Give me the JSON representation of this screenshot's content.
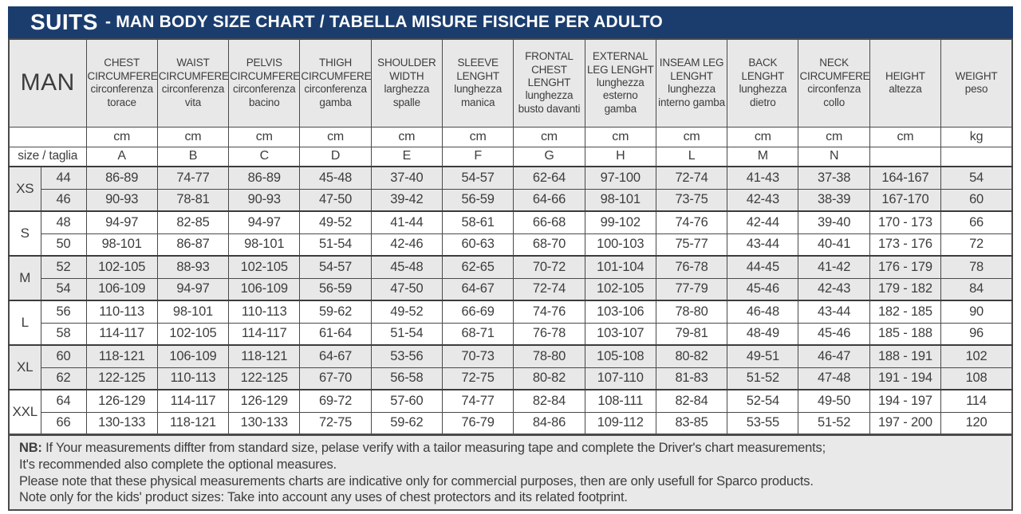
{
  "title": {
    "brand": "SUITS",
    "rest": "- MAN BODY SIZE CHART / TABELLA MISURE FISICHE PER ADULTO"
  },
  "colors": {
    "accent_navy": "#1b3d6e",
    "shade_gray": "#e8e8e8",
    "border_gray": "#4a4a4a"
  },
  "table": {
    "man_label": "MAN",
    "size_row_label": "size / taglia",
    "columns": [
      {
        "en": "CHEST CIRCUMFERENCE",
        "it": "circonferenza torace",
        "unit": "cm",
        "letter": "A"
      },
      {
        "en": "WAIST CIRCUMFERENCE",
        "it": "circonferenza vita",
        "unit": "cm",
        "letter": "B"
      },
      {
        "en": "PELVIS CIRCUMFERENCE",
        "it": "circonferenza bacino",
        "unit": "cm",
        "letter": "C"
      },
      {
        "en": "THIGH CIRCUMFERENCE",
        "it": "circonferenza gamba",
        "unit": "cm",
        "letter": "D"
      },
      {
        "en": "SHOULDER WIDTH",
        "it": "larghezza spalle",
        "unit": "cm",
        "letter": "E"
      },
      {
        "en": "SLEEVE LENGHT",
        "it": "lunghezza manica",
        "unit": "cm",
        "letter": "F"
      },
      {
        "en": "FRONTAL CHEST LENGHT",
        "it": "lunghezza busto davanti",
        "unit": "cm",
        "letter": "G"
      },
      {
        "en": "EXTERNAL LEG LENGHT",
        "it": "lunghezza esterno gamba",
        "unit": "cm",
        "letter": "H"
      },
      {
        "en": "INSEAM LEG LENGHT",
        "it": "lunghezza interno gamba",
        "unit": "cm",
        "letter": "L"
      },
      {
        "en": "BACK LENGHT",
        "it": "lunghezza dietro",
        "unit": "cm",
        "letter": "M"
      },
      {
        "en": "NECK CIRCUMFERENCE",
        "it": "circonfenza collo",
        "unit": "cm",
        "letter": "N"
      },
      {
        "en": "HEIGHT",
        "it": "altezza",
        "unit": "cm",
        "letter": ""
      },
      {
        "en": "WEIGHT",
        "it": "peso",
        "unit": "kg",
        "letter": ""
      }
    ],
    "groups": [
      {
        "label": "XS",
        "rows": [
          {
            "size": "44",
            "values": [
              "86-89",
              "74-77",
              "86-89",
              "45-48",
              "37-40",
              "54-57",
              "62-64",
              "97-100",
              "72-74",
              "41-43",
              "37-38",
              "164-167",
              "54"
            ]
          },
          {
            "size": "46",
            "values": [
              "90-93",
              "78-81",
              "90-93",
              "47-50",
              "39-42",
              "56-59",
              "64-66",
              "98-101",
              "73-75",
              "42-43",
              "38-39",
              "167-170",
              "60"
            ]
          }
        ]
      },
      {
        "label": "S",
        "rows": [
          {
            "size": "48",
            "values": [
              "94-97",
              "82-85",
              "94-97",
              "49-52",
              "41-44",
              "58-61",
              "66-68",
              "99-102",
              "74-76",
              "42-44",
              "39-40",
              "170 - 173",
              "66"
            ]
          },
          {
            "size": "50",
            "values": [
              "98-101",
              "86-87",
              "98-101",
              "51-54",
              "42-46",
              "60-63",
              "68-70",
              "100-103",
              "75-77",
              "43-44",
              "40-41",
              "173 - 176",
              "72"
            ]
          }
        ]
      },
      {
        "label": "M",
        "rows": [
          {
            "size": "52",
            "values": [
              "102-105",
              "88-93",
              "102-105",
              "54-57",
              "45-48",
              "62-65",
              "70-72",
              "101-104",
              "76-78",
              "44-45",
              "41-42",
              "176 - 179",
              "78"
            ]
          },
          {
            "size": "54",
            "values": [
              "106-109",
              "94-97",
              "106-109",
              "56-59",
              "47-50",
              "64-67",
              "72-74",
              "102-105",
              "77-79",
              "45-46",
              "42-43",
              "179 - 182",
              "84"
            ]
          }
        ]
      },
      {
        "label": "L",
        "rows": [
          {
            "size": "56",
            "values": [
              "110-113",
              "98-101",
              "110-113",
              "59-62",
              "49-52",
              "66-69",
              "74-76",
              "103-106",
              "78-80",
              "46-48",
              "43-44",
              "182 - 185",
              "90"
            ]
          },
          {
            "size": "58",
            "values": [
              "114-117",
              "102-105",
              "114-117",
              "61-64",
              "51-54",
              "68-71",
              "76-78",
              "103-107",
              "79-81",
              "48-49",
              "45-46",
              "185 - 188",
              "96"
            ]
          }
        ]
      },
      {
        "label": "XL",
        "rows": [
          {
            "size": "60",
            "values": [
              "118-121",
              "106-109",
              "118-121",
              "64-67",
              "53-56",
              "70-73",
              "78-80",
              "105-108",
              "80-82",
              "49-51",
              "46-47",
              "188 - 191",
              "102"
            ]
          },
          {
            "size": "62",
            "values": [
              "122-125",
              "110-113",
              "122-125",
              "67-70",
              "56-58",
              "72-75",
              "80-82",
              "107-110",
              "81-83",
              "51-52",
              "47-48",
              "191 - 194",
              "108"
            ]
          }
        ]
      },
      {
        "label": "XXL",
        "rows": [
          {
            "size": "64",
            "values": [
              "126-129",
              "114-117",
              "126-129",
              "69-72",
              "57-60",
              "74-77",
              "82-84",
              "108-111",
              "82-84",
              "52-54",
              "49-50",
              "194 - 197",
              "114"
            ]
          },
          {
            "size": "66",
            "values": [
              "130-133",
              "118-121",
              "130-133",
              "72-75",
              "59-62",
              "76-79",
              "84-86",
              "109-112",
              "83-85",
              "53-55",
              "51-52",
              "197 - 200",
              "120"
            ]
          }
        ]
      }
    ]
  },
  "notes": {
    "nb_label": "NB:",
    "line1": "If Your measurements diffter from standard size, pelase verify with a tailor measuring tape and complete the Driver's chart measurements;",
    "line2": "It's recommended also complete the optional measures.",
    "line3": "Please note that these physical measurements charts are indicative only for commercial purposes, then are only usefull for Sparco products.",
    "line4": "Note only for the kids' product sizes: Take into account any uses of chest protectors and its related footprint."
  }
}
